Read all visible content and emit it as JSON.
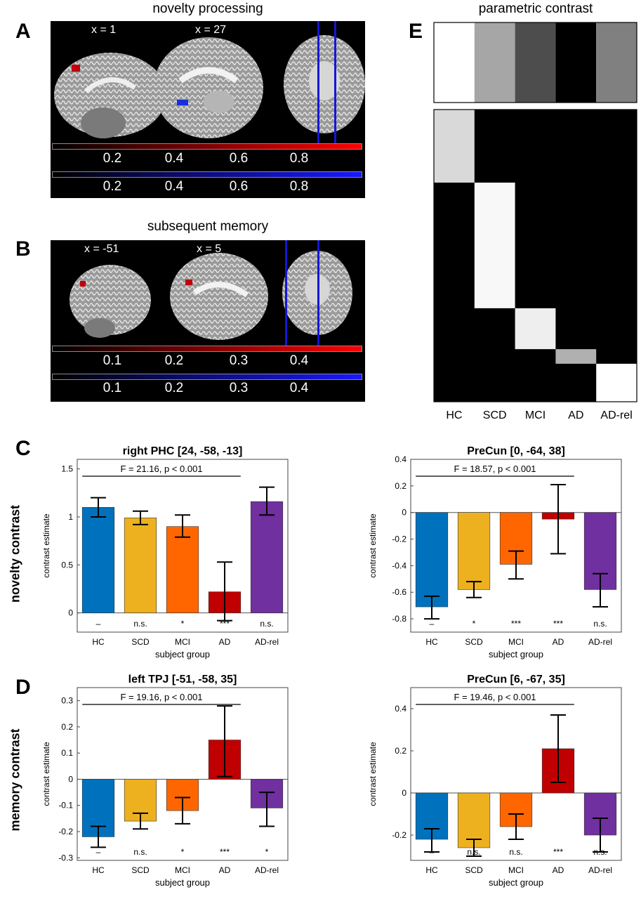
{
  "panels": {
    "A": {
      "letter": "A",
      "title": "novelty processing",
      "slice_labels": [
        "x = 1",
        "x = 27"
      ],
      "colorbar_red_ticks": [
        "0.2",
        "0.4",
        "0.6",
        "0.8"
      ],
      "colorbar_blue_ticks": [
        "0.2",
        "0.4",
        "0.6",
        "0.8"
      ]
    },
    "B": {
      "letter": "B",
      "title": "subsequent memory",
      "slice_labels": [
        "x = -51",
        "x = 5"
      ],
      "colorbar_red_ticks": [
        "0.1",
        "0.2",
        "0.3",
        "0.4"
      ],
      "colorbar_blue_ticks": [
        "0.1",
        "0.2",
        "0.3",
        "0.4"
      ]
    },
    "E": {
      "letter": "E",
      "title": "parametric contrast",
      "groups": [
        "HC",
        "SCD",
        "MCI",
        "AD",
        "AD-rel"
      ],
      "weights_gray": [
        "#ffffff",
        "#a6a6a6",
        "#4d4d4d",
        "#000000",
        "#808080"
      ],
      "design_blocks": [
        {
          "group": "HC",
          "fraction": 0.25,
          "gray": "#d9d9d9"
        },
        {
          "group": "SCD",
          "fraction": 0.43,
          "gray": "#f8f8f8"
        },
        {
          "group": "MCI",
          "fraction": 0.14,
          "gray": "#eeeeee"
        },
        {
          "group": "AD",
          "fraction": 0.05,
          "gray": "#b0b0b0"
        },
        {
          "group": "AD-rel",
          "fraction": 0.13,
          "gray": "#ffffff"
        }
      ]
    },
    "C": {
      "letter": "C",
      "row_label": "novelty contrast"
    },
    "D": {
      "letter": "D",
      "row_label": "memory contrast"
    }
  },
  "colors": {
    "HC": "#0072bd",
    "SCD": "#edb120",
    "MCI": "#ff6600",
    "AD": "#c00000",
    "AD-rel": "#7030a0"
  },
  "chart_data": [
    {
      "id": "C-left",
      "type": "bar",
      "title": "right PHC [24, -58, -13]",
      "xlabel": "subject group",
      "ylabel": "contrast estimate",
      "categories": [
        "HC",
        "SCD",
        "MCI",
        "AD",
        "AD-rel"
      ],
      "values": [
        1.1,
        0.99,
        0.9,
        0.22,
        1.16
      ],
      "err_low": [
        1.0,
        0.92,
        0.79,
        -0.08,
        1.02
      ],
      "err_high": [
        1.2,
        1.06,
        1.02,
        0.53,
        1.31
      ],
      "sig": [
        "–",
        "n.s.",
        "*",
        "***",
        "n.s."
      ],
      "annotation": "F = 21.16, p < 0.001",
      "ylim": [
        -0.2,
        1.6
      ],
      "yticks": [
        0,
        0.5,
        1,
        1.5
      ],
      "ytick_labels": [
        "0",
        "0.5",
        "1",
        "1.5"
      ]
    },
    {
      "id": "C-right",
      "type": "bar",
      "title": "PreCun [0, -64, 38]",
      "xlabel": "subject group",
      "ylabel": "contrast estimate",
      "categories": [
        "HC",
        "SCD",
        "MCI",
        "AD",
        "AD-rel"
      ],
      "values": [
        -0.71,
        -0.58,
        -0.39,
        -0.05,
        -0.58
      ],
      "err_low": [
        -0.8,
        -0.64,
        -0.5,
        -0.31,
        -0.71
      ],
      "err_high": [
        -0.63,
        -0.52,
        -0.29,
        0.21,
        -0.46
      ],
      "sig": [
        "–",
        "*",
        "***",
        "***",
        "n.s."
      ],
      "annotation": "F = 18.57, p < 0.001",
      "ylim": [
        -0.9,
        0.4
      ],
      "yticks": [
        -0.8,
        -0.6,
        -0.4,
        -0.2,
        0,
        0.2,
        0.4
      ],
      "ytick_labels": [
        "-0.8",
        "-0.6",
        "-0.4",
        "-0.2",
        "0",
        "0.2",
        "0.4"
      ]
    },
    {
      "id": "D-left",
      "type": "bar",
      "title": "left TPJ [-51, -58, 35]",
      "xlabel": "subject group",
      "ylabel": "contrast estimate",
      "categories": [
        "HC",
        "SCD",
        "MCI",
        "AD",
        "AD-rel"
      ],
      "values": [
        -0.22,
        -0.16,
        -0.12,
        0.15,
        -0.11
      ],
      "err_low": [
        -0.26,
        -0.19,
        -0.17,
        0.01,
        -0.18
      ],
      "err_high": [
        -0.18,
        -0.13,
        -0.07,
        0.28,
        -0.05
      ],
      "sig": [
        "–",
        "n.s.",
        "*",
        "***",
        "*"
      ],
      "annotation": "F = 19.16, p < 0.001",
      "ylim": [
        -0.31,
        0.35
      ],
      "yticks": [
        -0.3,
        -0.2,
        -0.1,
        0,
        0.1,
        0.2,
        0.3
      ],
      "ytick_labels": [
        "-0.3",
        "-0.2",
        "-0.1",
        "0",
        "0.1",
        "0.2",
        "0.3"
      ]
    },
    {
      "id": "D-right",
      "type": "bar",
      "title": "PreCun [6, -67, 35]",
      "xlabel": "subject group",
      "ylabel": "contrast estimate",
      "categories": [
        "HC",
        "SCD",
        "MCI",
        "AD",
        "AD-rel"
      ],
      "values": [
        -0.22,
        -0.26,
        -0.16,
        0.21,
        -0.2
      ],
      "err_low": [
        -0.28,
        -0.3,
        -0.22,
        0.05,
        -0.28
      ],
      "err_high": [
        -0.17,
        -0.22,
        -0.1,
        0.37,
        -0.12
      ],
      "sig": [
        "–",
        "n.s.",
        "n.s.",
        "***",
        "n.s."
      ],
      "annotation": "F = 19.46, p < 0.001",
      "ylim": [
        -0.32,
        0.5
      ],
      "yticks": [
        -0.2,
        0,
        0.2,
        0.4
      ],
      "ytick_labels": [
        "-0.2",
        "0",
        "0.2",
        "0.4"
      ]
    }
  ]
}
